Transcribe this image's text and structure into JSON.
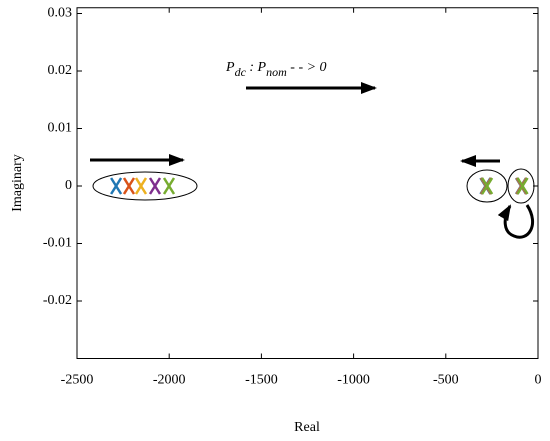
{
  "chart_data": {
    "type": "scatter",
    "x_label": "Real",
    "y_label": "Imaginary",
    "annotation": [
      "P",
      "dc",
      " : P",
      "nom",
      " - - > 0"
    ],
    "xlim": [
      -2500,
      0
    ],
    "xticks": [
      -2500,
      -2000,
      -1500,
      -1000,
      -500,
      0
    ],
    "ylim": [
      -0.03,
      0.031
    ],
    "yticks": [
      0.03,
      0.02,
      0.01,
      0,
      -0.01,
      -0.02
    ],
    "grid": false,
    "series": [
      {
        "color": "#1f77b4",
        "x": [
          -2288,
          -285,
          -92
        ],
        "values": [
          0,
          0,
          0
        ]
      },
      {
        "color": "#d95319",
        "x": [
          -2218,
          -282,
          -90
        ],
        "values": [
          0,
          0,
          0
        ]
      },
      {
        "color": "#edb120",
        "x": [
          -2153,
          -280,
          -88
        ],
        "values": [
          0,
          0,
          0
        ]
      },
      {
        "color": "#7e2f8e",
        "x": [
          -2077,
          -278,
          -86
        ],
        "values": [
          0,
          0,
          0
        ]
      },
      {
        "color": "#77ac30",
        "x": [
          -2001,
          -276,
          -84
        ],
        "values": [
          0,
          0,
          0
        ]
      }
    ]
  }
}
